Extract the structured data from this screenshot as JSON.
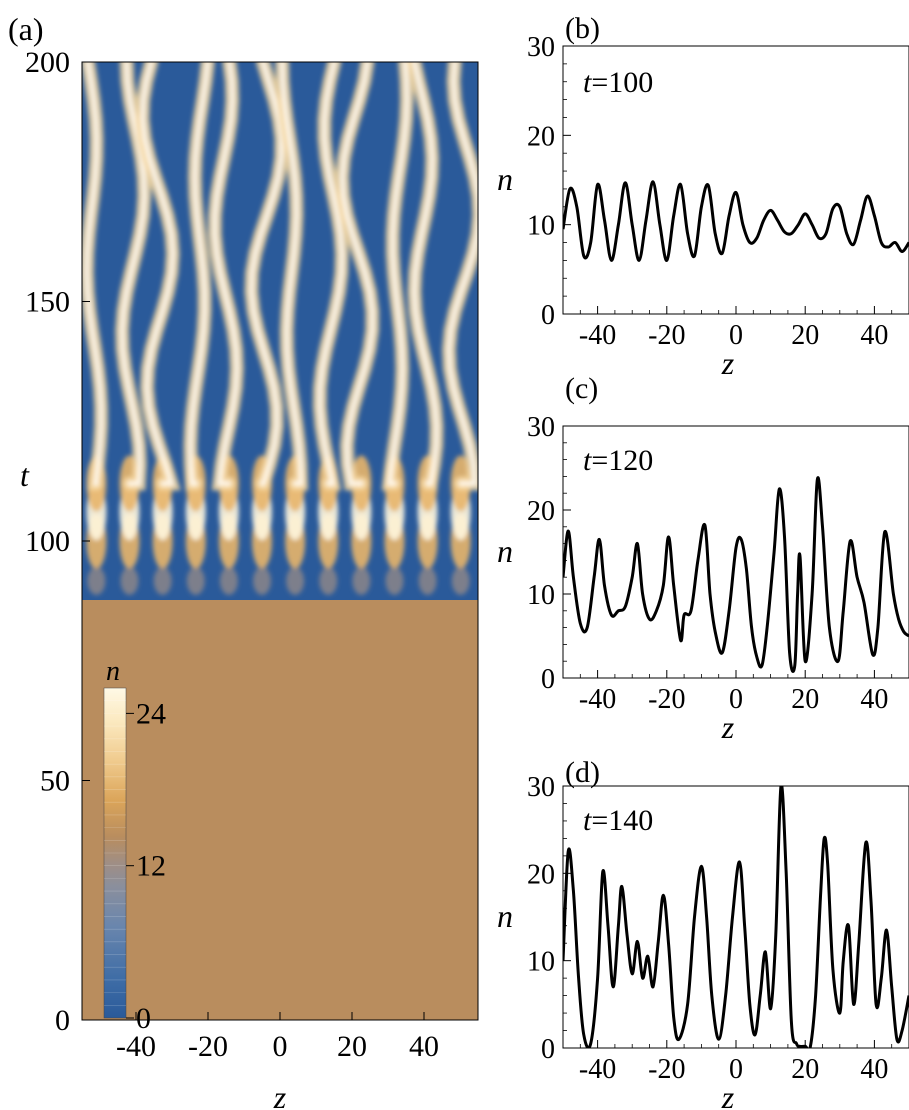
{
  "chart_data": [
    {
      "panel_label": "(a)",
      "type": "heatmap",
      "xlabel": "z",
      "ylabel": "t",
      "xlim": [
        -55,
        55
      ],
      "ylim": [
        0,
        200
      ],
      "xticks": [
        -40,
        -20,
        0,
        20,
        40
      ],
      "yticks": [
        0,
        50,
        100,
        150,
        200
      ],
      "colorbar": {
        "label": "n",
        "range": [
          0,
          26
        ],
        "ticks": [
          0,
          12,
          24
        ],
        "colors": [
          "#2a5a9a",
          "#3f6da6",
          "#6a86ad",
          "#8b8f9c",
          "#a08e84",
          "#b98d5e",
          "#dba55a",
          "#f0cb8e",
          "#fbe9c0",
          "#fff9e6"
        ]
      },
      "uniform_value_below_t": 90,
      "uniform_value": 11,
      "filament_count": 12,
      "filament_spacing_z": 9.2
    },
    {
      "panel_label": "(b)",
      "type": "line",
      "annotation": "t=100",
      "xlabel": "z",
      "ylabel": "n",
      "xlim": [
        -50,
        50
      ],
      "ylim": [
        0,
        30
      ],
      "xticks": [
        -40,
        -20,
        0,
        20,
        40
      ],
      "yticks": [
        0,
        10,
        20,
        30
      ],
      "x": [
        -50,
        -48,
        -46,
        -44,
        -42,
        -40,
        -38,
        -36,
        -34,
        -32,
        -30,
        -28,
        -26,
        -24,
        -22,
        -20,
        -18,
        -16,
        -14,
        -12,
        -10,
        -8,
        -6,
        -4,
        -2,
        0,
        2,
        4,
        6,
        8,
        10,
        12,
        14,
        16,
        18,
        20,
        22,
        24,
        26,
        28,
        30,
        32,
        34,
        36,
        38,
        40,
        42,
        44,
        46,
        48,
        50
      ],
      "y": [
        9.5,
        14.0,
        12.0,
        6.5,
        8.0,
        14.5,
        10.5,
        6.0,
        10.0,
        14.7,
        10.0,
        6.0,
        10.5,
        14.8,
        10.0,
        6.0,
        11.0,
        14.5,
        9.0,
        6.5,
        12.0,
        14.4,
        9.0,
        6.8,
        11.0,
        13.6,
        10.0,
        8.0,
        8.5,
        10.5,
        11.6,
        10.5,
        9.2,
        9.0,
        10.0,
        11.2,
        10.0,
        8.5,
        9.0,
        11.8,
        12.0,
        9.0,
        7.8,
        10.5,
        13.2,
        11.0,
        8.0,
        7.5,
        8.0,
        7.0,
        8.0
      ]
    },
    {
      "panel_label": "(c)",
      "type": "line",
      "annotation": "t=120",
      "xlabel": "z",
      "ylabel": "n",
      "xlim": [
        -50,
        50
      ],
      "ylim": [
        0,
        30
      ],
      "xticks": [
        -40,
        -20,
        0,
        20,
        40
      ],
      "yticks": [
        0,
        10,
        20,
        30
      ],
      "x": [
        -50,
        -48.5,
        -47,
        -45,
        -43,
        -41,
        -39.5,
        -38,
        -36,
        -34,
        -32,
        -30,
        -28.5,
        -27,
        -25,
        -23,
        -21,
        -19.5,
        -18,
        -16,
        -15,
        -13,
        -11,
        -9,
        -7.5,
        -6,
        -4,
        -2,
        0,
        1.5,
        3,
        4.5,
        6,
        7.5,
        9,
        11,
        12.5,
        14,
        15.5,
        17,
        17.8,
        18.5,
        20,
        22,
        23.5,
        25,
        27,
        29.5,
        31,
        33,
        35,
        37,
        39.5,
        41,
        43,
        45.5,
        47,
        48.5,
        50
      ],
      "y": [
        12.0,
        17.5,
        12.0,
        6.5,
        6.0,
        12.0,
        16.5,
        11.0,
        7.5,
        8.0,
        8.5,
        12.0,
        16.0,
        10.0,
        7.0,
        8.0,
        11.0,
        16.8,
        11.0,
        4.5,
        7.5,
        8.0,
        14.0,
        18.2,
        10.0,
        5.5,
        3.0,
        8.0,
        15.5,
        16.5,
        13.0,
        6.0,
        2.5,
        1.5,
        6.0,
        15.0,
        22.5,
        17.0,
        3.0,
        1.5,
        10.0,
        14.5,
        2.0,
        10.0,
        23.6,
        18.0,
        6.0,
        2.0,
        8.0,
        16.3,
        12.0,
        9.0,
        2.8,
        6.0,
        17.4,
        10.0,
        7.0,
        5.5,
        5.0
      ]
    },
    {
      "panel_label": "(d)",
      "type": "line",
      "annotation": "t=140",
      "xlabel": "z",
      "ylabel": "n",
      "xlim": [
        -50,
        50
      ],
      "ylim": [
        0,
        30
      ],
      "xticks": [
        -40,
        -20,
        0,
        20,
        40
      ],
      "yticks": [
        0,
        10,
        20,
        30
      ],
      "x": [
        -50,
        -48.5,
        -47,
        -45.5,
        -44,
        -42,
        -40,
        -38.5,
        -37,
        -35.5,
        -34,
        -33,
        -31.5,
        -30,
        -28.5,
        -27,
        -25.5,
        -24,
        -22.5,
        -21,
        -19.5,
        -18,
        -16.5,
        -14,
        -12,
        -10,
        -8.5,
        -7,
        -5,
        -3,
        -1,
        1,
        2.5,
        4,
        5.5,
        7,
        8.5,
        10,
        11.5,
        13,
        14.5,
        16,
        17.5,
        18.5,
        20,
        21.5,
        23,
        24.5,
        25.5,
        26.5,
        28,
        30,
        31,
        32.5,
        34,
        35.5,
        37.5,
        39,
        40.5,
        42,
        43.5,
        45,
        46.5,
        48,
        50
      ],
      "y": [
        10.0,
        22.5,
        18.0,
        8.0,
        1.5,
        0.5,
        8.0,
        20.2,
        14.0,
        7.0,
        14.0,
        18.5,
        13.0,
        8.5,
        12.2,
        8.0,
        10.5,
        7.0,
        12.0,
        17.5,
        12.0,
        3.5,
        1.0,
        5.0,
        15.0,
        20.8,
        15.0,
        6.0,
        1.0,
        6.0,
        15.0,
        21.3,
        14.0,
        5.0,
        1.5,
        6.0,
        11.0,
        4.5,
        13.0,
        30.0,
        20.0,
        3.0,
        0.5,
        0.2,
        0.2,
        0.2,
        6.0,
        18.0,
        24.0,
        21.0,
        9.0,
        4.0,
        10.0,
        14.0,
        5.0,
        12.0,
        23.5,
        17.0,
        5.0,
        8.0,
        13.5,
        7.0,
        1.0,
        2.0,
        6.0
      ]
    }
  ]
}
